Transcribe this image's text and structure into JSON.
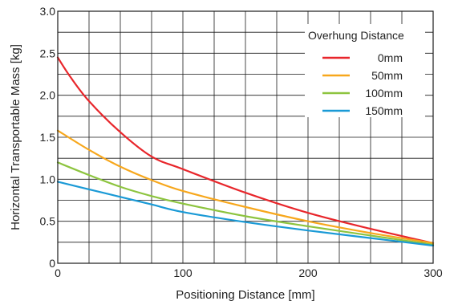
{
  "chart_data": {
    "type": "line",
    "xlabel": "Positioning Distance [mm]",
    "ylabel": "Horizontal Transportable Mass [kg]",
    "xlim": [
      0,
      300
    ],
    "ylim": [
      0,
      3.0
    ],
    "xticks": [
      0,
      100,
      200,
      300
    ],
    "xtick_labels": [
      "0",
      "100",
      "200",
      "300"
    ],
    "yticks": [
      0,
      0.5,
      1.0,
      1.5,
      2.0,
      2.5,
      3.0
    ],
    "ytick_labels": [
      "0",
      "0.5",
      "1.0",
      "1.5",
      "2.0",
      "2.5",
      "3.0"
    ],
    "x_grid_step": 25,
    "y_grid_step": 0.25,
    "grid": true,
    "legend": {
      "title": "Overhung Distance",
      "placement": "top-right"
    },
    "series": [
      {
        "name": "0mm",
        "color": "#e8262b",
        "points": [
          [
            0,
            2.45
          ],
          [
            10,
            2.22
          ],
          [
            25,
            1.93
          ],
          [
            50,
            1.56
          ],
          [
            75,
            1.27
          ],
          [
            100,
            1.12
          ],
          [
            150,
            0.84
          ],
          [
            200,
            0.6
          ],
          [
            250,
            0.41
          ],
          [
            300,
            0.24
          ]
        ]
      },
      {
        "name": "50mm",
        "color": "#f7a71c",
        "points": [
          [
            0,
            1.58
          ],
          [
            25,
            1.35
          ],
          [
            50,
            1.15
          ],
          [
            75,
            0.99
          ],
          [
            100,
            0.86
          ],
          [
            150,
            0.67
          ],
          [
            200,
            0.5
          ],
          [
            250,
            0.36
          ],
          [
            300,
            0.24
          ]
        ]
      },
      {
        "name": "100mm",
        "color": "#8dc43f",
        "points": [
          [
            0,
            1.2
          ],
          [
            25,
            1.05
          ],
          [
            50,
            0.91
          ],
          [
            75,
            0.8
          ],
          [
            100,
            0.71
          ],
          [
            150,
            0.56
          ],
          [
            200,
            0.44
          ],
          [
            250,
            0.33
          ],
          [
            300,
            0.22
          ]
        ]
      },
      {
        "name": "150mm",
        "color": "#1a9ad6",
        "points": [
          [
            0,
            0.97
          ],
          [
            25,
            0.88
          ],
          [
            50,
            0.79
          ],
          [
            75,
            0.7
          ],
          [
            100,
            0.61
          ],
          [
            150,
            0.49
          ],
          [
            200,
            0.39
          ],
          [
            250,
            0.3
          ],
          [
            300,
            0.21
          ]
        ]
      }
    ]
  }
}
